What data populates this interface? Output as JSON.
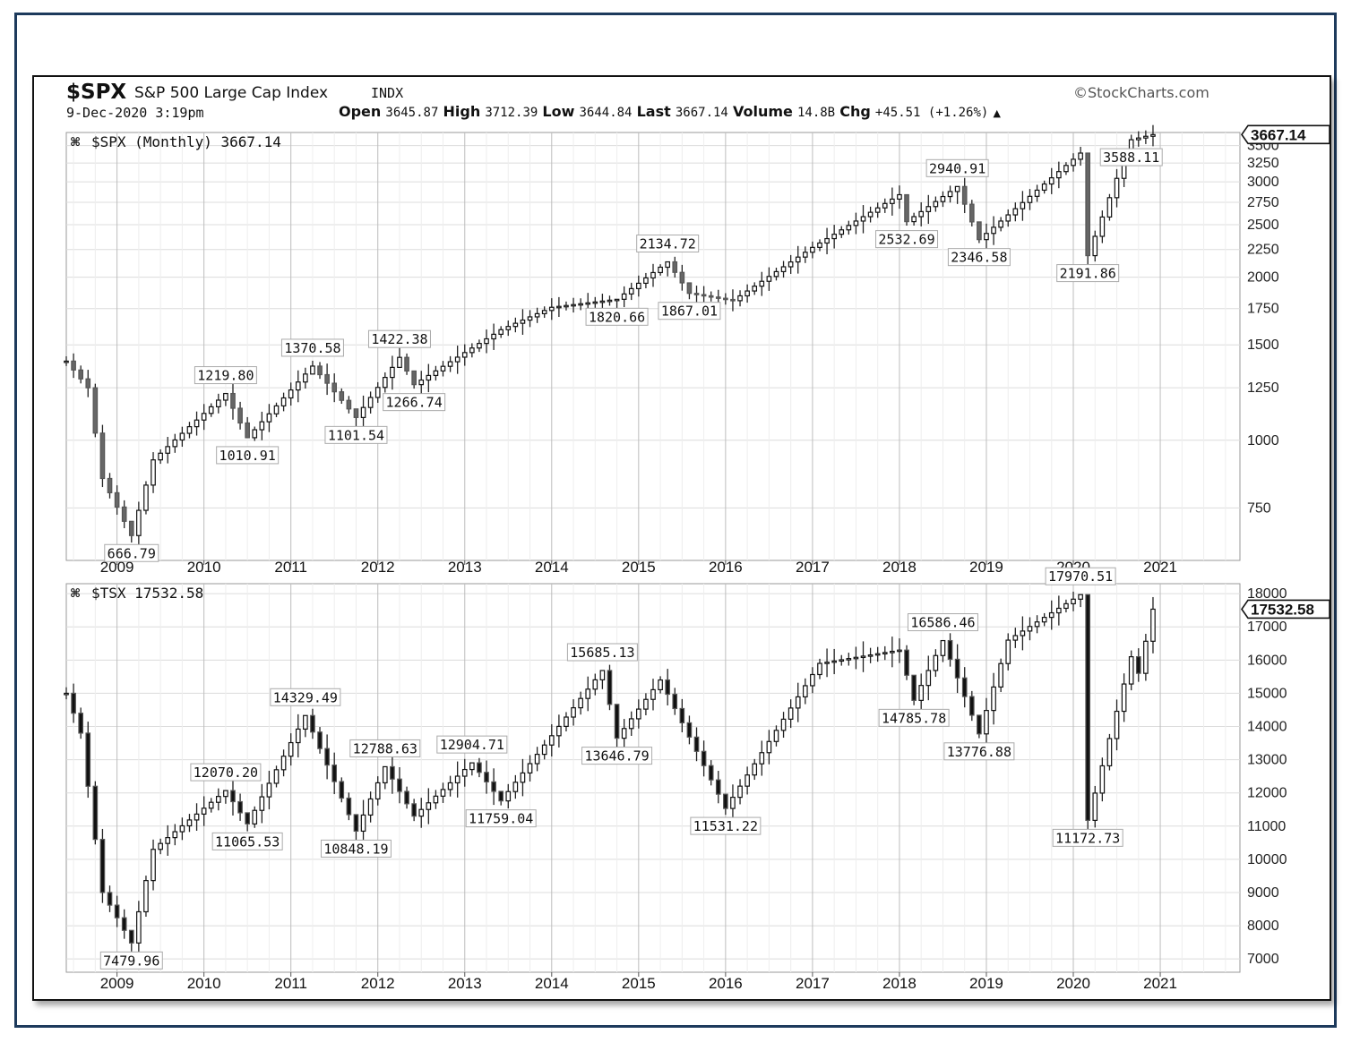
{
  "header": {
    "symbol": "$SPX",
    "name": "S&P 500 Large Cap Index",
    "exchange": "INDX",
    "brand": "©StockCharts.com",
    "datetime": "9-Dec-2020 3:19pm",
    "open_label": "Open",
    "open_value": "3645.87",
    "high_label": "High",
    "high_value": "3712.39",
    "low_label": "Low",
    "low_value": "3644.84",
    "last_label": "Last",
    "last_value": "3667.14",
    "volume_label": "Volume",
    "volume_value": "14.8B",
    "chg_label": "Chg",
    "chg_value": "+45.51 (+1.26%)"
  },
  "chart_data": [
    {
      "type": "candlestick",
      "title": "$SPX (Monthly) 3667.14",
      "last_value": "3667.14",
      "scale": "log",
      "ylim": [
        600,
        3700
      ],
      "y_ticks": [
        750,
        1000,
        1250,
        1500,
        1750,
        2000,
        2250,
        2500,
        2750,
        3000,
        3250,
        3500
      ],
      "x_ticks": [
        "2009",
        "2010",
        "2011",
        "2012",
        "2013",
        "2014",
        "2015",
        "2016",
        "2017",
        "2018",
        "2019",
        "2020",
        "2021"
      ],
      "x_range": [
        "2008-06",
        "2021-12"
      ],
      "grid": true,
      "key_points": [
        {
          "date": "2008-06",
          "value": 1400
        },
        {
          "date": "2008-09",
          "value": 1250
        },
        {
          "date": "2008-11",
          "value": 850
        },
        {
          "date": "2009-03",
          "value": 666.79,
          "label": "666.79"
        },
        {
          "date": "2009-06",
          "value": 920
        },
        {
          "date": "2010-04",
          "value": 1219.8,
          "label": "1219.80"
        },
        {
          "date": "2010-07",
          "value": 1010.91,
          "label": "1010.91"
        },
        {
          "date": "2011-04",
          "value": 1370.58,
          "label": "1370.58"
        },
        {
          "date": "2011-10",
          "value": 1101.54,
          "label": "1101.54"
        },
        {
          "date": "2012-04",
          "value": 1422.38,
          "label": "1422.38"
        },
        {
          "date": "2012-06",
          "value": 1266.74,
          "label": "1266.74"
        },
        {
          "date": "2013-06",
          "value": 1600
        },
        {
          "date": "2014-01",
          "value": 1760
        },
        {
          "date": "2014-10",
          "value": 1820.66,
          "label": "1820.66"
        },
        {
          "date": "2015-05",
          "value": 2134.72,
          "label": "2134.72"
        },
        {
          "date": "2015-08",
          "value": 1867.01,
          "label": "1867.01"
        },
        {
          "date": "2016-02",
          "value": 1810
        },
        {
          "date": "2017-01",
          "value": 2270
        },
        {
          "date": "2018-01",
          "value": 2840
        },
        {
          "date": "2018-02",
          "value": 2532.69,
          "label": "2532.69"
        },
        {
          "date": "2018-09",
          "value": 2940.91,
          "label": "2940.91"
        },
        {
          "date": "2018-12",
          "value": 2346.58,
          "label": "2346.58"
        },
        {
          "date": "2020-02",
          "value": 3390
        },
        {
          "date": "2020-03",
          "value": 2191.86,
          "label": "2191.86"
        },
        {
          "date": "2020-09",
          "value": 3588.11,
          "label": "3588.11"
        },
        {
          "date": "2020-12",
          "value": 3667.14
        }
      ]
    },
    {
      "type": "candlestick",
      "title": "$TSX 17532.58",
      "last_value": "17532.58",
      "scale": "linear",
      "ylim": [
        6600,
        18300
      ],
      "y_ticks": [
        7000,
        8000,
        9000,
        10000,
        11000,
        12000,
        13000,
        14000,
        15000,
        16000,
        17000,
        18000
      ],
      "x_ticks": [
        "2009",
        "2010",
        "2011",
        "2012",
        "2013",
        "2014",
        "2015",
        "2016",
        "2017",
        "2018",
        "2019",
        "2020",
        "2021"
      ],
      "x_range": [
        "2008-06",
        "2021-12"
      ],
      "grid": true,
      "key_points": [
        {
          "date": "2008-06",
          "value": 15000
        },
        {
          "date": "2008-08",
          "value": 13800
        },
        {
          "date": "2008-11",
          "value": 9000
        },
        {
          "date": "2009-03",
          "value": 7479.96,
          "label": "7479.96"
        },
        {
          "date": "2009-06",
          "value": 10300
        },
        {
          "date": "2010-04",
          "value": 12070.2,
          "label": "12070.20"
        },
        {
          "date": "2010-07",
          "value": 11065.53,
          "label": "11065.53"
        },
        {
          "date": "2011-03",
          "value": 14329.49,
          "label": "14329.49"
        },
        {
          "date": "2011-10",
          "value": 10848.19,
          "label": "10848.19"
        },
        {
          "date": "2012-02",
          "value": 12788.63,
          "label": "12788.63"
        },
        {
          "date": "2012-06",
          "value": 11300
        },
        {
          "date": "2013-02",
          "value": 12904.71,
          "label": "12904.71"
        },
        {
          "date": "2013-06",
          "value": 11759.04,
          "label": "11759.04"
        },
        {
          "date": "2014-08",
          "value": 15685.13,
          "label": "15685.13"
        },
        {
          "date": "2014-10",
          "value": 13646.79,
          "label": "13646.79"
        },
        {
          "date": "2015-04",
          "value": 15400
        },
        {
          "date": "2016-01",
          "value": 11531.22,
          "label": "11531.22"
        },
        {
          "date": "2017-02",
          "value": 15900
        },
        {
          "date": "2018-01",
          "value": 16300
        },
        {
          "date": "2018-03",
          "value": 14785.78,
          "label": "14785.78"
        },
        {
          "date": "2018-07",
          "value": 16586.46,
          "label": "16586.46"
        },
        {
          "date": "2018-12",
          "value": 13776.88,
          "label": "13776.88"
        },
        {
          "date": "2019-04",
          "value": 16600
        },
        {
          "date": "2020-02",
          "value": 17970.51,
          "label": "17970.51"
        },
        {
          "date": "2020-03",
          "value": 11172.73,
          "label": "11172.73"
        },
        {
          "date": "2020-09",
          "value": 16100
        },
        {
          "date": "2020-10",
          "value": 15600
        },
        {
          "date": "2020-12",
          "value": 17532.58
        }
      ]
    }
  ]
}
